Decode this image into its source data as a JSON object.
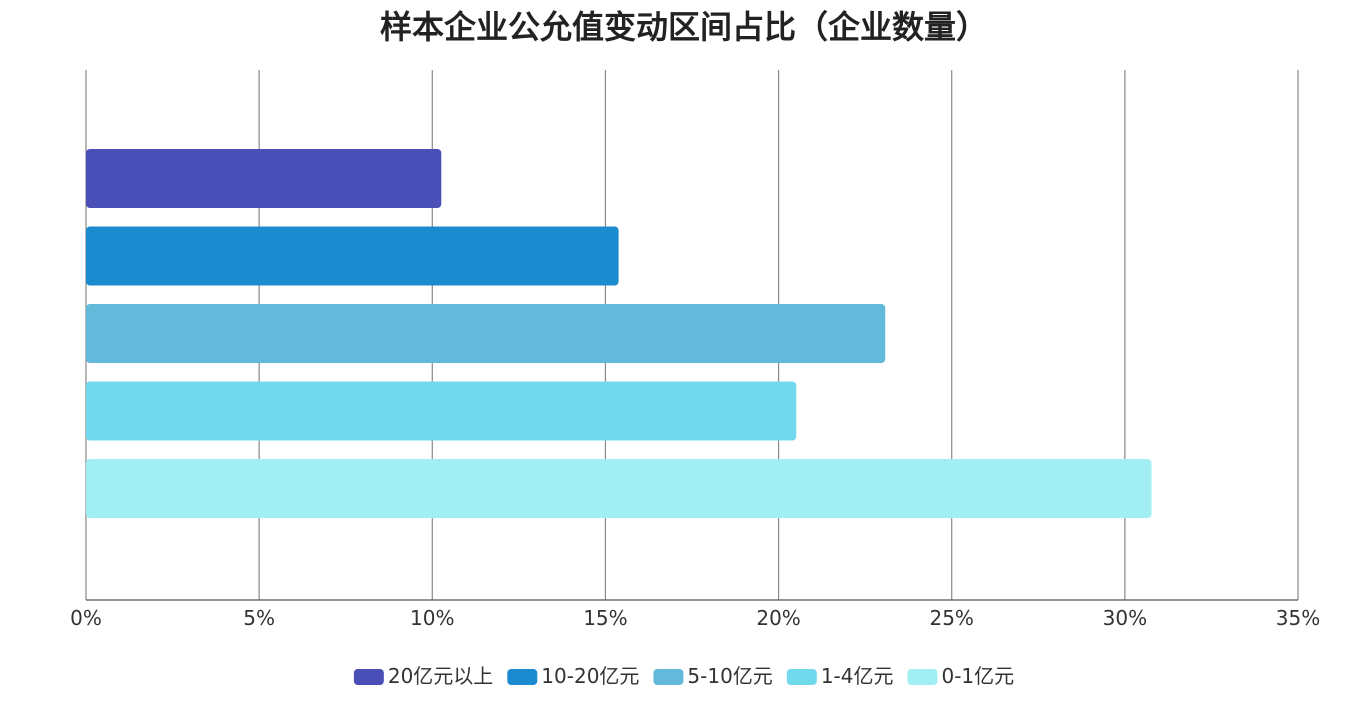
{
  "chart_data": {
    "type": "bar",
    "orientation": "horizontal",
    "title": "样本企业公允值变动区间占比（企业数量）",
    "xlim": [
      0,
      35
    ],
    "x_ticks": [
      "0%",
      "5%",
      "10%",
      "15%",
      "20%",
      "25%",
      "30%",
      "35%"
    ],
    "grid": true,
    "legend_position": "bottom",
    "series": [
      {
        "name": "20亿元以上",
        "value": 10.26,
        "color": "#4a4fb8"
      },
      {
        "name": "10-20亿元",
        "value": 15.38,
        "color": "#1c8acf"
      },
      {
        "name": "5-10亿元",
        "value": 23.08,
        "color": "#62b9d9"
      },
      {
        "name": "1-4亿元",
        "value": 20.51,
        "color": "#70daec"
      },
      {
        "name": "0-1亿元",
        "value": 30.77,
        "color": "#a2eff3"
      }
    ]
  }
}
